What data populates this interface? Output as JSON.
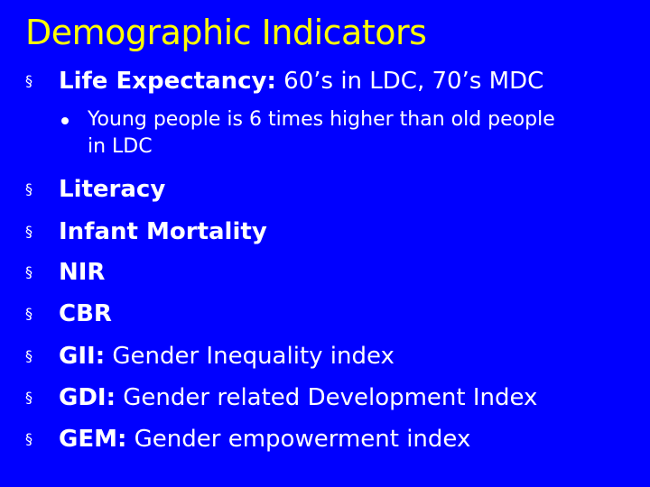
{
  "slide": {
    "title": "Demographic Indicators",
    "title_color": "#ffff00",
    "background_color": "#0000ff",
    "bullet_icon": "square-bullet-icon",
    "sub_bullet_icon": "round-bullet-icon",
    "items": [
      {
        "term": "Life Expectancy:",
        "detail": " 60’s in LDC, 70’s MDC"
      },
      {
        "term": "Literacy",
        "detail": ""
      },
      {
        "term": "Infant Mortality",
        "detail": ""
      },
      {
        "term": "NIR",
        "detail": ""
      },
      {
        "term": "CBR",
        "detail": ""
      },
      {
        "term": "GII:",
        "detail": " Gender Inequality index"
      },
      {
        "term": "GDI:",
        "detail": " Gender related Development Index"
      },
      {
        "term": "GEM:",
        "detail": " Gender empowerment index"
      }
    ],
    "sub_item": {
      "line1": "Young people is 6 times higher than old people",
      "line2": "in LDC"
    }
  }
}
